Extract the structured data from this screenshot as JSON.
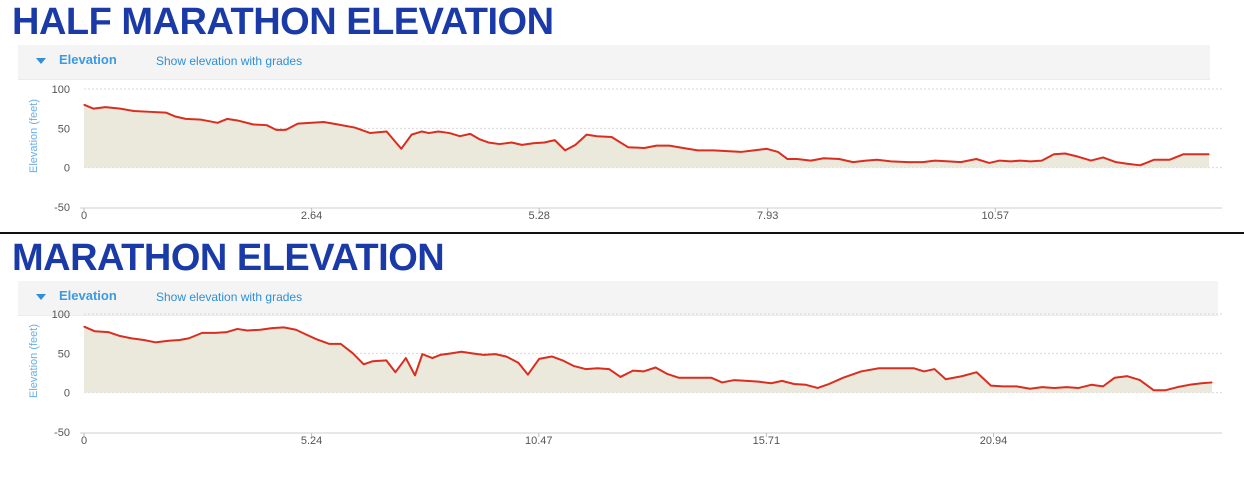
{
  "panels": [
    {
      "title": "HALF MARATHON ELEVATION",
      "toolbar": {
        "label": "Elevation",
        "link": "Show elevation with grades"
      }
    },
    {
      "title": "MARATHON ELEVATION",
      "toolbar": {
        "label": "Elevation",
        "link": "Show elevation with grades"
      }
    }
  ],
  "colors": {
    "title": "#1a3aa8",
    "line": "#d92e1f",
    "fill": "#ebe8dc",
    "link": "#2f8fd8"
  },
  "chart_data": [
    {
      "type": "area",
      "title": "HALF MARATHON ELEVATION",
      "ylabel": "Elevation (feet)",
      "xlabel": "",
      "xlim": [
        0,
        13.2
      ],
      "ylim": [
        -50,
        100
      ],
      "xticks": [
        "0",
        "2.64",
        "5.28",
        "7.93",
        "10.57"
      ],
      "xtick_values": [
        0,
        2.64,
        5.28,
        7.93,
        10.57
      ],
      "yticks": [
        100,
        50,
        0,
        -50
      ],
      "grid": true,
      "series": [
        {
          "x": [
            0.0,
            0.11,
            0.25,
            0.42,
            0.58,
            0.76,
            0.95,
            1.06,
            1.18,
            1.36,
            1.55,
            1.66,
            1.78,
            1.96,
            2.12,
            2.23,
            2.34,
            2.48,
            2.78,
            2.94,
            3.14,
            3.32,
            3.51,
            3.68,
            3.8,
            3.92,
            4.0,
            4.11,
            4.24,
            4.36,
            4.48,
            4.59,
            4.69,
            4.82,
            4.96,
            5.08,
            5.21,
            5.34,
            5.46,
            5.58,
            5.7,
            5.83,
            5.95,
            6.12,
            6.31,
            6.5,
            6.64,
            6.79,
            6.95,
            7.12,
            7.3,
            7.46,
            7.62,
            7.77,
            7.92,
            8.05,
            8.16,
            8.27,
            8.43,
            8.58,
            8.76,
            8.92,
            9.07,
            9.2,
            9.36,
            9.56,
            9.73,
            9.87,
            10.03,
            10.17,
            10.35,
            10.5,
            10.62,
            10.75,
            10.86,
            10.98,
            11.11,
            11.25,
            11.38,
            11.53,
            11.68,
            11.82,
            11.97,
            12.1,
            12.25,
            12.41,
            12.59,
            12.75,
            12.91,
            13.05
          ],
          "y": [
            80,
            75,
            77,
            75,
            72,
            71,
            70,
            65,
            62,
            61,
            57,
            62,
            60,
            55,
            54,
            48,
            48,
            56,
            58,
            55,
            51,
            44,
            46,
            24,
            42,
            46,
            44,
            46,
            44,
            40,
            43,
            36,
            32,
            30,
            32,
            29,
            31,
            32,
            35,
            22,
            29,
            42,
            40,
            39,
            26,
            25,
            28,
            28,
            25,
            22,
            22,
            21,
            20,
            22,
            24,
            20,
            11,
            11,
            9,
            12,
            11,
            7,
            9,
            10,
            8,
            7,
            7,
            9,
            8,
            7,
            11,
            6,
            9,
            8,
            9,
            8,
            9,
            17,
            18,
            14,
            9,
            13,
            7,
            5,
            3,
            10,
            10,
            17,
            17,
            17
          ]
        }
      ]
    },
    {
      "type": "area",
      "title": "MARATHON ELEVATION",
      "ylabel": "Elevation (feet)",
      "xlabel": "",
      "xlim": [
        0,
        26.2
      ],
      "ylim": [
        -50,
        100
      ],
      "xticks": [
        "0",
        "5.24",
        "10.47",
        "15.71",
        "20.94"
      ],
      "xtick_values": [
        0,
        5.24,
        10.47,
        15.71,
        20.94
      ],
      "yticks": [
        100,
        50,
        0,
        -50
      ],
      "grid": true,
      "series": [
        {
          "x": [
            0.0,
            0.25,
            0.56,
            0.83,
            1.1,
            1.38,
            1.64,
            1.95,
            2.2,
            2.41,
            2.72,
            3.02,
            3.29,
            3.53,
            3.76,
            4.06,
            4.33,
            4.6,
            4.88,
            5.15,
            5.35,
            5.65,
            5.91,
            6.19,
            6.44,
            6.65,
            6.96,
            7.17,
            7.41,
            7.62,
            7.79,
            8.02,
            8.2,
            8.45,
            8.69,
            8.94,
            9.2,
            9.47,
            9.72,
            10.0,
            10.22,
            10.48,
            10.77,
            11.02,
            11.27,
            11.55,
            11.82,
            12.09,
            12.35,
            12.64,
            12.88,
            13.16,
            13.42,
            13.69,
            13.96,
            14.19,
            14.44,
            14.69,
            14.97,
            15.26,
            15.53,
            15.82,
            16.07,
            16.35,
            16.62,
            16.89,
            17.15,
            17.48,
            17.89,
            18.3,
            18.71,
            19.11,
            19.34,
            19.58,
            19.84,
            20.22,
            20.55,
            20.88,
            21.16,
            21.47,
            21.78,
            22.06,
            22.34,
            22.62,
            22.9,
            23.19,
            23.46,
            23.73,
            24.02,
            24.31,
            24.63,
            24.89,
            25.17,
            25.45,
            25.73,
            25.97
          ],
          "y": [
            84,
            78,
            77,
            72,
            69,
            67,
            64,
            66,
            67,
            69,
            76,
            76,
            77,
            81,
            79,
            80,
            82,
            83,
            80,
            73,
            68,
            62,
            62,
            50,
            36,
            40,
            41,
            26,
            44,
            22,
            49,
            44,
            48,
            50,
            52,
            50,
            48,
            49,
            46,
            38,
            23,
            43,
            46,
            41,
            34,
            30,
            31,
            30,
            20,
            28,
            27,
            32,
            24,
            19,
            19,
            19,
            19,
            13,
            16,
            15,
            14,
            12,
            15,
            11,
            10,
            6,
            11,
            19,
            27,
            31,
            31,
            31,
            27,
            30,
            17,
            21,
            26,
            9,
            8,
            8,
            5,
            7,
            6,
            7,
            6,
            10,
            8,
            19,
            21,
            16,
            3,
            3,
            7,
            10,
            12,
            13
          ]
        }
      ]
    }
  ]
}
